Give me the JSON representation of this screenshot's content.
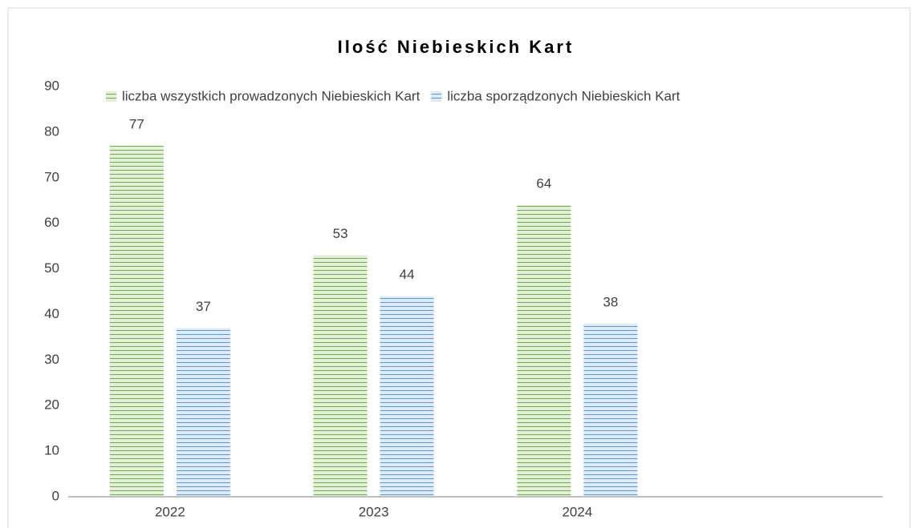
{
  "chart_data": {
    "type": "bar",
    "title": "Ilość Niebieskich Kart",
    "categories": [
      "2022",
      "2023",
      "2024",
      null
    ],
    "series": [
      {
        "name": "liczba wszystkich prowadzonych Niebieskich Kart",
        "color": "#70ad47",
        "values": [
          77,
          53,
          64,
          null
        ]
      },
      {
        "name": "liczba sporządzonych Niebieskich Kart",
        "color": "#5b9bd5",
        "values": [
          37,
          44,
          38,
          null
        ]
      }
    ],
    "ylim": [
      0,
      90
    ],
    "yticks": [
      0,
      10,
      20,
      30,
      40,
      50,
      60,
      70,
      80,
      90
    ],
    "grid": false,
    "legend": "top"
  }
}
